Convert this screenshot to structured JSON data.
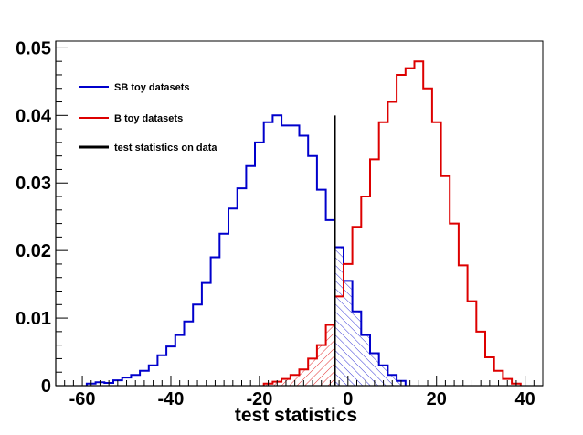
{
  "chart_data": {
    "type": "histogram",
    "xlabel": "test statistics",
    "ylabel": "",
    "xlim": [
      -66,
      44
    ],
    "ylim": [
      0,
      0.051
    ],
    "x_ticks": [
      -60,
      -40,
      -20,
      0,
      20,
      40
    ],
    "x_tick_labels": [
      "-60",
      "-40",
      "-20",
      "0",
      "20",
      "40"
    ],
    "y_ticks": [
      0,
      0.01,
      0.02,
      0.03,
      0.04,
      0.05
    ],
    "y_tick_labels": [
      "0",
      "0.01",
      "0.02",
      "0.03",
      "0.04",
      "0.05"
    ],
    "grid": false,
    "legend_position": "top-left",
    "series": [
      {
        "name": "SB toy datasets",
        "color": "#0000cc",
        "bins": [
          [
            -58,
            0.0003
          ],
          [
            -56,
            0.0005
          ],
          [
            -54,
            0.0004
          ],
          [
            -52,
            0.0008
          ],
          [
            -50,
            0.0012
          ],
          [
            -48,
            0.0016
          ],
          [
            -46,
            0.0022
          ],
          [
            -44,
            0.003
          ],
          [
            -42,
            0.0045
          ],
          [
            -40,
            0.0058
          ],
          [
            -38,
            0.0075
          ],
          [
            -36,
            0.0095
          ],
          [
            -34,
            0.012
          ],
          [
            -32,
            0.0152
          ],
          [
            -30,
            0.019
          ],
          [
            -28,
            0.0225
          ],
          [
            -26,
            0.0262
          ],
          [
            -24,
            0.0292
          ],
          [
            -22,
            0.0325
          ],
          [
            -20,
            0.036
          ],
          [
            -18,
            0.039
          ],
          [
            -16,
            0.04
          ],
          [
            -14,
            0.0385
          ],
          [
            -12,
            0.0385
          ],
          [
            -10,
            0.037
          ],
          [
            -8,
            0.034
          ],
          [
            -6,
            0.029
          ],
          [
            -4,
            0.0245
          ],
          [
            -2,
            0.0205
          ],
          [
            0,
            0.0155
          ],
          [
            2,
            0.011
          ],
          [
            4,
            0.0075
          ],
          [
            6,
            0.0048
          ],
          [
            8,
            0.003
          ],
          [
            10,
            0.0016
          ],
          [
            12,
            0.0007
          ]
        ]
      },
      {
        "name": "B toy datasets",
        "color": "#dd0000",
        "bins": [
          [
            -18,
            0.0003
          ],
          [
            -16,
            0.0006
          ],
          [
            -14,
            0.001
          ],
          [
            -12,
            0.0016
          ],
          [
            -10,
            0.0024
          ],
          [
            -8,
            0.004
          ],
          [
            -6,
            0.006
          ],
          [
            -4,
            0.009
          ],
          [
            -2,
            0.0132
          ],
          [
            0,
            0.018
          ],
          [
            2,
            0.0235
          ],
          [
            4,
            0.028
          ],
          [
            6,
            0.0335
          ],
          [
            8,
            0.039
          ],
          [
            10,
            0.042
          ],
          [
            12,
            0.046
          ],
          [
            14,
            0.047
          ],
          [
            16,
            0.048
          ],
          [
            18,
            0.044
          ],
          [
            20,
            0.039
          ],
          [
            22,
            0.031
          ],
          [
            24,
            0.024
          ],
          [
            26,
            0.0178
          ],
          [
            28,
            0.0125
          ],
          [
            30,
            0.008
          ],
          [
            32,
            0.0042
          ],
          [
            34,
            0.0022
          ],
          [
            36,
            0.001
          ],
          [
            38,
            0.0003
          ]
        ]
      }
    ],
    "data_line": {
      "name": "test statistics on data",
      "x": -3,
      "y_top": 0.04,
      "color": "#000000"
    },
    "shading": [
      {
        "series": "B toy datasets",
        "from": -66,
        "to": -3,
        "color": "#dd0000"
      },
      {
        "series": "SB toy datasets",
        "from": -3,
        "to": 44,
        "color": "#0000cc"
      }
    ]
  }
}
